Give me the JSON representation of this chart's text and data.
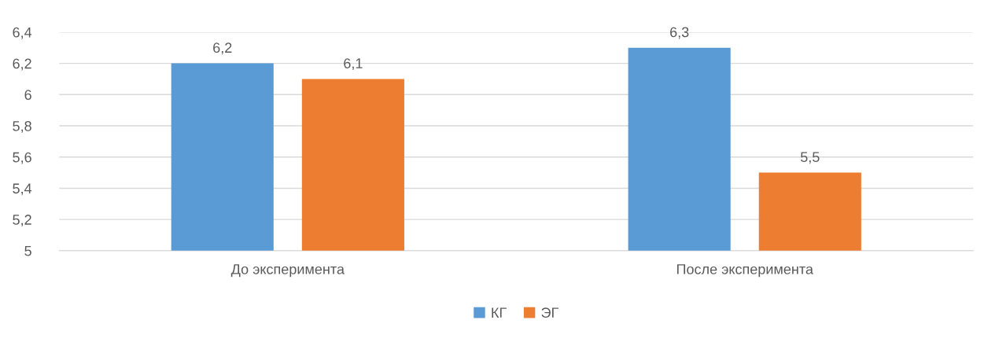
{
  "chart_data": {
    "type": "bar",
    "categories": [
      "До эксперимента",
      "После эксперимента"
    ],
    "series": [
      {
        "name": "КГ",
        "color": "#5b9bd5",
        "values": [
          6.2,
          6.3
        ],
        "value_labels": [
          "6,2",
          "6,3"
        ]
      },
      {
        "name": "ЭГ",
        "color": "#ed7d31",
        "values": [
          6.1,
          5.5
        ],
        "value_labels": [
          "6,1",
          "5,5"
        ]
      }
    ],
    "ylim": [
      5,
      6.4
    ],
    "yticks": [
      5,
      {
        "value": 5.2,
        "label": "5,2"
      },
      {
        "value": 5.4,
        "label": "5,4"
      },
      {
        "value": 5.6,
        "label": "5,6"
      },
      {
        "value": 5.8,
        "label": "5,8"
      },
      6,
      {
        "value": 6.2,
        "label": "6,2"
      },
      {
        "value": 6.4,
        "label": "6,4"
      }
    ],
    "grid": "y",
    "legend": "bottom"
  }
}
